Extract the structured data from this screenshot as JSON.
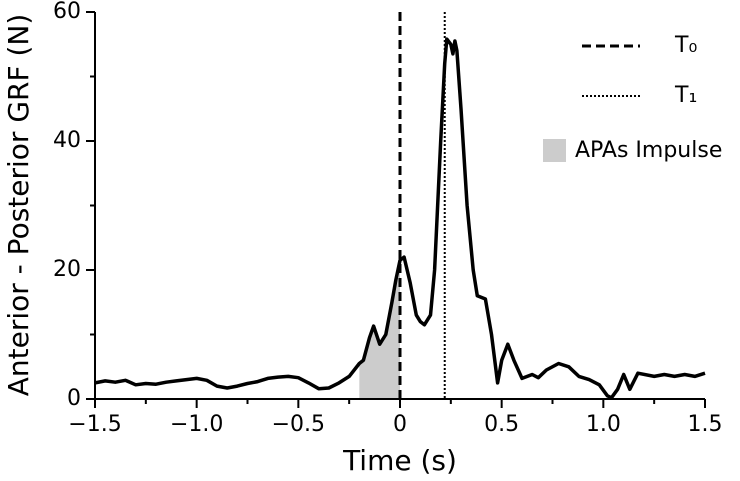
{
  "chart_data": {
    "type": "line",
    "xlabel": "Time (s)",
    "ylabel": "Anterior - Posterior GRF (N)",
    "xlim": [
      -1.5,
      1.5
    ],
    "ylim": [
      0,
      60
    ],
    "xticks": [
      {
        "value": -1.5,
        "label": "−1.5"
      },
      {
        "value": -1.0,
        "label": "−1.0"
      },
      {
        "value": -0.5,
        "label": "−0.5"
      },
      0,
      0.5,
      {
        "value": 1.0,
        "label": "1.0"
      },
      1.5
    ],
    "xminorticks": [
      -1.25,
      -0.75,
      -0.25,
      0.25,
      0.75,
      1.25
    ],
    "yticks": [
      0,
      20,
      40,
      60
    ],
    "yminorticks": [
      10,
      30,
      50
    ],
    "color": "#000000",
    "x": [
      -1.5,
      -1.45,
      -1.4,
      -1.35,
      -1.3,
      -1.25,
      -1.2,
      -1.15,
      -1.1,
      -1.05,
      -1.0,
      -0.95,
      -0.9,
      -0.85,
      -0.8,
      -0.75,
      -0.7,
      -0.65,
      -0.6,
      -0.55,
      -0.5,
      -0.45,
      -0.4,
      -0.35,
      -0.3,
      -0.25,
      -0.2,
      -0.18,
      -0.15,
      -0.13,
      -0.1,
      -0.07,
      -0.04,
      -0.02,
      0,
      0.02,
      0.05,
      0.08,
      0.1,
      0.12,
      0.15,
      0.17,
      0.2,
      0.22,
      0.23,
      0.25,
      0.26,
      0.27,
      0.28,
      0.3,
      0.33,
      0.36,
      0.38,
      0.42,
      0.45,
      0.48,
      0.5,
      0.53,
      0.56,
      0.6,
      0.65,
      0.68,
      0.72,
      0.78,
      0.83,
      0.88,
      0.93,
      0.98,
      1.02,
      1.04,
      1.07,
      1.1,
      1.13,
      1.17,
      1.25,
      1.3,
      1.35,
      1.4,
      1.45,
      1.5
    ],
    "values": [
      2.5,
      2.8,
      2.6,
      2.9,
      2.2,
      2.4,
      2.3,
      2.6,
      2.8,
      3.0,
      3.2,
      2.9,
      2.0,
      1.7,
      2.0,
      2.4,
      2.7,
      3.2,
      3.4,
      3.5,
      3.3,
      2.5,
      1.6,
      1.7,
      2.5,
      3.5,
      5.5,
      6.0,
      9.5,
      11.3,
      8.5,
      10,
      15,
      18.5,
      21.5,
      22,
      18,
      13,
      12,
      11.5,
      13,
      20,
      40,
      52,
      55.8,
      55,
      53.5,
      55.5,
      54,
      45,
      30,
      20,
      16,
      15.5,
      10,
      2.5,
      6,
      8.5,
      6,
      3.2,
      3.8,
      3.3,
      4.5,
      5.5,
      5,
      3.5,
      3.0,
      2.2,
      0.5,
      0.2,
      1.5,
      3.8,
      1.5,
      4,
      3.5,
      3.8,
      3.5,
      3.8,
      3.5,
      4.0
    ],
    "vlines": [
      {
        "name": "T₀",
        "x": 0,
        "style": "dashed"
      },
      {
        "name": "T₁",
        "x": 0.22,
        "style": "dotted"
      }
    ],
    "shade": {
      "name": "APAs Impulse",
      "x": [
        -0.2,
        0
      ],
      "color": "#cccccc"
    }
  }
}
